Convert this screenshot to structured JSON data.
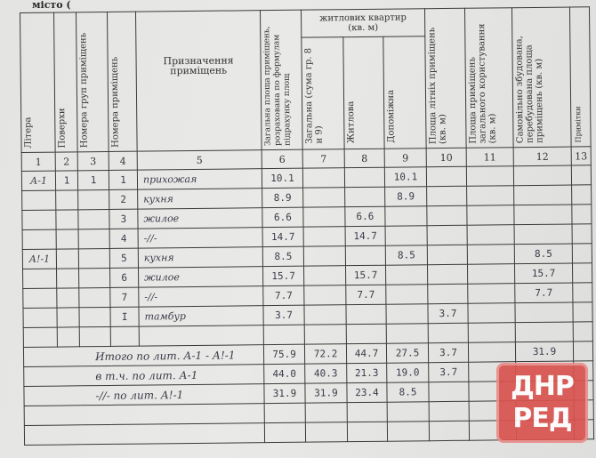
{
  "cut_text": "місто (",
  "headers": {
    "c1": "Літера",
    "c2": "Поверхи",
    "c3": "Номера груп приміщень",
    "c4": "Номера приміщень",
    "c5": "Призначення приміщень",
    "c6": "Загальна площа приміщень, розрахована по формулам підрахунку площ",
    "group": "житлових квартир (кв. м)",
    "c7": "Загальна (сума гр. 8 и 9)",
    "c8": "Житлова",
    "c9": "Допоміжна",
    "c10": "Площа літніх приміщень (кв. м)",
    "c11": "Площа приміщень загального користування (кв. м)",
    "c12": "Самовільно збудована, перебудована площа приміщень (кв. м)",
    "c13": "Примітки"
  },
  "column_numbers": [
    "1",
    "2",
    "3",
    "4",
    "5",
    "6",
    "7",
    "8",
    "9",
    "10",
    "11",
    "12",
    "13"
  ],
  "rows": [
    [
      "А-1",
      "1",
      "1",
      "1",
      "прихожая",
      "10.1",
      "",
      "",
      "10.1",
      "",
      "",
      "",
      ""
    ],
    [
      "",
      "",
      "",
      "2",
      "кухня",
      "8.9",
      "",
      "",
      "8.9",
      "",
      "",
      "",
      ""
    ],
    [
      "",
      "",
      "",
      "3",
      "жилое",
      "6.6",
      "",
      "6.6",
      "",
      "",
      "",
      "",
      ""
    ],
    [
      "",
      "",
      "",
      "4",
      "-//-",
      "14.7",
      "",
      "14.7",
      "",
      "",
      "",
      "",
      ""
    ],
    [
      "А!-1",
      "",
      "",
      "5",
      "кухня",
      "8.5",
      "",
      "",
      "8.5",
      "",
      "",
      "8.5",
      ""
    ],
    [
      "",
      "",
      "",
      "6",
      "жилое",
      "15.7",
      "",
      "15.7",
      "",
      "",
      "",
      "15.7",
      ""
    ],
    [
      "",
      "",
      "",
      "7",
      "-//-",
      "7.7",
      "",
      "7.7",
      "",
      "",
      "",
      "7.7",
      ""
    ],
    [
      "",
      "",
      "",
      "I",
      "тамбур",
      "3.7",
      "",
      "",
      "",
      "3.7",
      "",
      "",
      ""
    ],
    [
      "",
      "",
      "",
      "",
      "",
      "",
      "",
      "",
      "",
      "",
      "",
      "",
      ""
    ]
  ],
  "totals": [
    {
      "label": "Итого по лит. А-1 - А!-1",
      "values": [
        "75.9",
        "72.2",
        "44.7",
        "27.5",
        "3.7",
        "",
        "31.9",
        ""
      ]
    },
    {
      "label": "в т.ч. по лит. А-1",
      "values": [
        "44.0",
        "40.3",
        "21.3",
        "19.0",
        "3.7",
        "",
        "",
        ""
      ]
    },
    {
      "label": "-//- по лит. А!-1",
      "values": [
        "31.9",
        "31.9",
        "23.4",
        "8.5",
        "",
        "",
        "",
        ""
      ]
    },
    {
      "label": "",
      "values": [
        "",
        "",
        "",
        "",
        "",
        "",
        "",
        ""
      ]
    },
    {
      "label": "",
      "values": [
        "",
        "",
        "",
        "",
        "",
        "",
        "",
        ""
      ]
    }
  ],
  "watermark": {
    "line1": "ДНР",
    "line2": "РЕД",
    "color": "#d9534f"
  }
}
